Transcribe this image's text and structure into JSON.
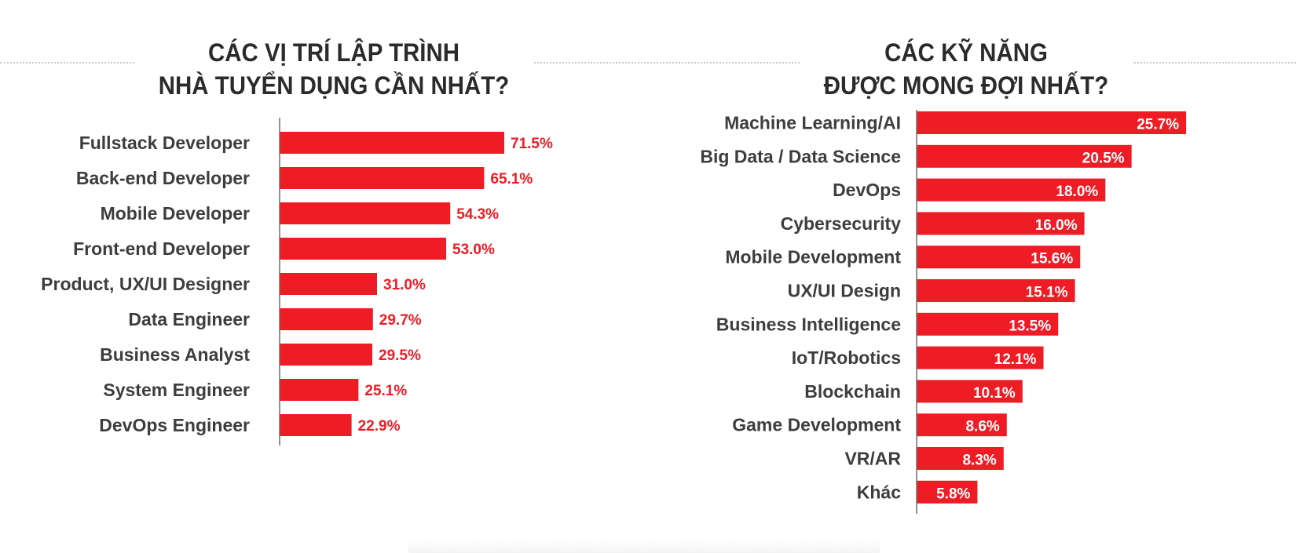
{
  "chart_data": [
    {
      "type": "bar",
      "orientation": "horizontal",
      "title": "CÁC VỊ TRÍ LẬP TRÌNH NHÀ TUYỂN DỤNG CẦN NHẤT?",
      "title_lines": [
        "CÁC VỊ TRÍ LẬP TRÌNH",
        "NHÀ TUYỂN DỤNG CẦN NHẤT?"
      ],
      "categories": [
        "Fullstack Developer",
        "Back-end Developer",
        "Mobile Developer",
        "Front-end Developer",
        "Product, UX/UI Designer",
        "Data Engineer",
        "Business Analyst",
        "System Engineer",
        "DevOps Engineer"
      ],
      "values": [
        71.5,
        65.1,
        54.3,
        53.0,
        31.0,
        29.7,
        29.5,
        25.1,
        22.9
      ],
      "value_labels": [
        "71.5%",
        "65.1%",
        "54.3%",
        "53.0%",
        "31.0%",
        "29.7%",
        "29.5%",
        "25.1%",
        "22.9%"
      ],
      "label_position": "outside",
      "unit": "%",
      "xlabel": "",
      "ylabel": "",
      "xlim": [
        0,
        100
      ],
      "grid": false,
      "legend": "none",
      "bar_color": "#ee1c25"
    },
    {
      "type": "bar",
      "orientation": "horizontal",
      "title": "CÁC KỸ NĂNG ĐƯỢC MONG ĐỢI NHẤT?",
      "title_lines": [
        "CÁC KỸ NĂNG",
        "ĐƯỢC MONG ĐỢI NHẤT?"
      ],
      "categories": [
        "Machine Learning/AI",
        "Big Data / Data Science",
        "DevOps",
        "Cybersecurity",
        "Mobile Development",
        "UX/UI Design",
        "Business Intelligence",
        "IoT/Robotics",
        "Blockchain",
        "Game Development",
        "VR/AR",
        "Khác"
      ],
      "values": [
        25.7,
        20.5,
        18.0,
        16.0,
        15.6,
        15.1,
        13.5,
        12.1,
        10.1,
        8.6,
        8.3,
        5.8
      ],
      "value_labels": [
        "25.7%",
        "20.5%",
        "18.0%",
        "16.0%",
        "15.6%",
        "15.1%",
        "13.5%",
        "12.1%",
        "10.1%",
        "8.6%",
        "8.3%",
        "5.8%"
      ],
      "label_position": "inside-end",
      "unit": "%",
      "xlabel": "",
      "ylabel": "",
      "xlim": [
        0,
        30
      ],
      "grid": false,
      "legend": "none",
      "bar_color": "#ee1c25"
    }
  ]
}
